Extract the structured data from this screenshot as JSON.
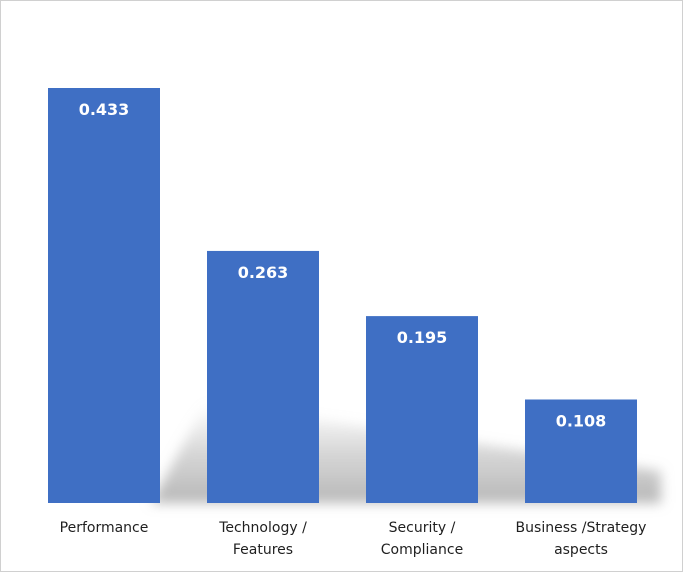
{
  "chart_data": {
    "type": "bar",
    "categories": [
      [
        "Performance"
      ],
      [
        "Technology /",
        "Features"
      ],
      [
        "Security /",
        "Compliance"
      ],
      [
        "Business /Strategy",
        "aspects"
      ]
    ],
    "values": [
      0.433,
      0.263,
      0.195,
      0.108
    ],
    "data_labels": [
      "0.433",
      "0.263",
      "0.195",
      "0.108"
    ],
    "title": "",
    "xlabel": "",
    "ylabel": "",
    "ylim": [
      0,
      0.433
    ],
    "grid": false,
    "legend": "none",
    "bar_color": "#3f6fc4",
    "label_color": "#ffffff"
  }
}
